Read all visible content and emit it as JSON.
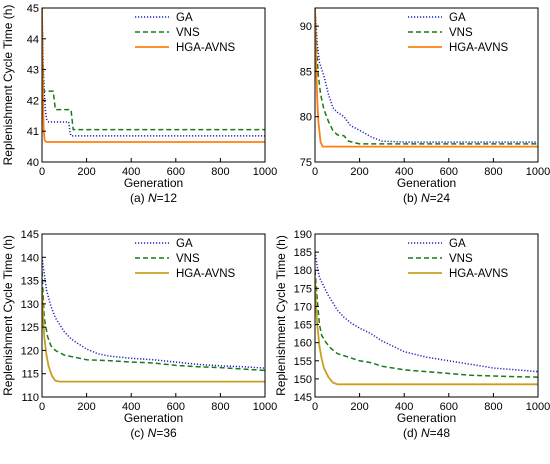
{
  "chart_data": [
    {
      "type": "line",
      "caption_prefix": "(a) ",
      "caption_var": "N",
      "caption_value": "=12",
      "xlabel": "Generation",
      "ylabel": "Replenishment Cycle Time (h)",
      "xlim": [
        0,
        1000
      ],
      "ylim": [
        40,
        45
      ],
      "xticks": [
        0,
        200,
        400,
        600,
        800,
        1000
      ],
      "yticks": [
        40,
        41,
        42,
        43,
        44,
        45
      ],
      "legend_position": "top-right",
      "series": [
        {
          "name": "GA",
          "color": "#1f1fbf",
          "style": "dotted",
          "x": [
            0,
            3,
            6,
            10,
            15,
            20,
            30,
            50,
            80,
            120,
            125,
            130,
            140,
            200,
            400,
            600,
            800,
            1000
          ],
          "y": [
            45,
            44.0,
            43.0,
            42.3,
            41.7,
            41.4,
            41.3,
            41.3,
            41.3,
            41.3,
            41.0,
            40.85,
            40.85,
            40.85,
            40.85,
            40.85,
            40.85,
            40.85
          ]
        },
        {
          "name": "VNS",
          "color": "#1a7a1a",
          "style": "dashed",
          "x": [
            0,
            3,
            8,
            10,
            50,
            60,
            130,
            140,
            200,
            400,
            600,
            800,
            1000
          ],
          "y": [
            45,
            43.5,
            42.3,
            42.3,
            42.3,
            41.7,
            41.7,
            41.05,
            41.05,
            41.05,
            41.05,
            41.05,
            41.05
          ]
        },
        {
          "name": "HGA-AVNS",
          "color": "#ff7f0e",
          "style": "solid",
          "x": [
            0,
            2,
            5,
            8,
            12,
            20,
            200,
            400,
            600,
            800,
            1000
          ],
          "y": [
            45,
            43.5,
            41.8,
            41.0,
            40.7,
            40.65,
            40.65,
            40.65,
            40.65,
            40.65,
            40.65
          ]
        }
      ]
    },
    {
      "type": "line",
      "caption_prefix": "(b) ",
      "caption_var": "N",
      "caption_value": "=24",
      "xlabel": "Generation",
      "ylabel": "",
      "xlim": [
        0,
        1000
      ],
      "ylim": [
        75,
        92
      ],
      "xticks": [
        0,
        200,
        400,
        600,
        800,
        1000
      ],
      "yticks": [
        75,
        80,
        85,
        90
      ],
      "legend_position": "top-right",
      "series": [
        {
          "name": "GA",
          "color": "#1f1fbf",
          "style": "dotted",
          "x": [
            0,
            10,
            20,
            40,
            60,
            80,
            100,
            130,
            160,
            200,
            250,
            300,
            400,
            600,
            800,
            1000
          ],
          "y": [
            92,
            88.0,
            86.0,
            84.5,
            82.5,
            81.0,
            80.5,
            80.0,
            79.0,
            78.5,
            77.8,
            77.3,
            77.2,
            77.2,
            77.2,
            77.2
          ]
        },
        {
          "name": "VNS",
          "color": "#1a7a1a",
          "style": "dashed",
          "x": [
            0,
            8,
            15,
            25,
            40,
            60,
            80,
            100,
            130,
            150,
            200,
            400,
            600,
            800,
            1000
          ],
          "y": [
            92,
            87.0,
            84.5,
            82.5,
            80.8,
            79.5,
            78.5,
            78.0,
            77.9,
            77.3,
            77.0,
            77.0,
            77.0,
            77.0,
            77.0
          ]
        },
        {
          "name": "HGA-AVNS",
          "color": "#ff7f0e",
          "style": "solid",
          "x": [
            0,
            5,
            10,
            15,
            25,
            35,
            200,
            400,
            600,
            800,
            1000
          ],
          "y": [
            92,
            86.0,
            82.0,
            79.5,
            77.2,
            76.7,
            76.7,
            76.7,
            76.7,
            76.7,
            76.7
          ]
        }
      ]
    },
    {
      "type": "line",
      "caption_prefix": "(c) ",
      "caption_var": "N",
      "caption_value": "=36",
      "xlabel": "Generation",
      "ylabel": "Replenishment Cycle Time (h)",
      "xlim": [
        0,
        1000
      ],
      "ylim": [
        110,
        145
      ],
      "xticks": [
        0,
        200,
        400,
        600,
        800,
        1000
      ],
      "yticks": [
        110,
        115,
        120,
        125,
        130,
        135,
        140,
        145
      ],
      "legend_position": "top-right",
      "series": [
        {
          "name": "GA",
          "color": "#1f1fbf",
          "style": "dotted",
          "x": [
            0,
            20,
            40,
            60,
            80,
            100,
            130,
            160,
            200,
            250,
            300,
            400,
            500,
            600,
            700,
            800,
            900,
            1000
          ],
          "y": [
            140,
            133.0,
            129.5,
            127.0,
            125.5,
            124.0,
            122.5,
            121.5,
            120.3,
            119.3,
            118.8,
            118.3,
            118.0,
            117.5,
            117.0,
            116.7,
            116.5,
            116.2
          ]
        },
        {
          "name": "VNS",
          "color": "#1a7a1a",
          "style": "dashed",
          "x": [
            0,
            10,
            25,
            40,
            60,
            80,
            100,
            150,
            200,
            300,
            400,
            500,
            600,
            700,
            800,
            900,
            1000
          ],
          "y": [
            137,
            127.0,
            123.0,
            121.0,
            120.0,
            119.5,
            119.0,
            118.5,
            118.0,
            117.8,
            117.5,
            117.3,
            116.8,
            116.5,
            116.3,
            116.0,
            115.7
          ]
        },
        {
          "name": "HGA-AVNS",
          "color": "#c8a020",
          "style": "solid",
          "x": [
            0,
            5,
            10,
            20,
            30,
            45,
            60,
            80,
            200,
            400,
            600,
            800,
            1000
          ],
          "y": [
            133,
            127.0,
            123.0,
            119.0,
            116.5,
            114.5,
            113.5,
            113.3,
            113.3,
            113.3,
            113.3,
            113.3,
            113.3
          ]
        }
      ]
    },
    {
      "type": "line",
      "caption_prefix": "(d) ",
      "caption_var": "N",
      "caption_value": "=48",
      "xlabel": "Generation",
      "ylabel": "Replenishment Cycle Time (h)",
      "xlim": [
        0,
        1000
      ],
      "ylim": [
        145,
        190
      ],
      "xticks": [
        0,
        200,
        400,
        600,
        800,
        1000
      ],
      "yticks": [
        145,
        150,
        155,
        160,
        165,
        170,
        175,
        180,
        185,
        190
      ],
      "legend_position": "top-right",
      "series": [
        {
          "name": "GA",
          "color": "#1f1fbf",
          "style": "dotted",
          "x": [
            0,
            10,
            20,
            40,
            60,
            80,
            100,
            130,
            160,
            200,
            250,
            300,
            350,
            400,
            500,
            600,
            700,
            800,
            900,
            1000
          ],
          "y": [
            185,
            181.0,
            178.0,
            175.5,
            173.0,
            171.0,
            169.0,
            167.0,
            165.5,
            164.0,
            162.5,
            160.5,
            159.0,
            157.5,
            156.0,
            155.0,
            154.0,
            153.0,
            152.5,
            152.0
          ]
        },
        {
          "name": "VNS",
          "color": "#1a7a1a",
          "style": "dashed",
          "x": [
            0,
            10,
            20,
            30,
            50,
            70,
            100,
            150,
            200,
            250,
            300,
            400,
            500,
            600,
            700,
            800,
            900,
            1000
          ],
          "y": [
            180,
            172.0,
            165.0,
            162.0,
            160.0,
            158.5,
            157.0,
            156.0,
            155.0,
            154.5,
            153.5,
            152.5,
            152.0,
            151.5,
            151.0,
            150.8,
            150.6,
            150.5
          ]
        },
        {
          "name": "HGA-AVNS",
          "color": "#c8a020",
          "style": "solid",
          "x": [
            0,
            5,
            10,
            20,
            30,
            40,
            60,
            80,
            100,
            200,
            400,
            600,
            800,
            1000
          ],
          "y": [
            178,
            170.0,
            165.0,
            159.0,
            155.5,
            153.0,
            150.5,
            149.0,
            148.5,
            148.5,
            148.5,
            148.5,
            148.5,
            148.5
          ]
        }
      ]
    }
  ]
}
